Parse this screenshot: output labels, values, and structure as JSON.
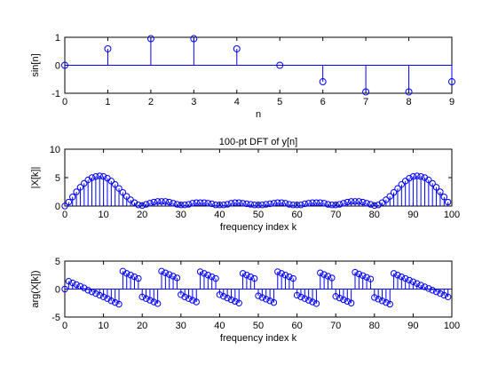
{
  "colors": {
    "stem": "#0000ff",
    "axis": "#000000",
    "background": "#ffffff"
  },
  "chart_data": [
    {
      "type": "stem",
      "title": "",
      "xlabel": "n",
      "ylabel": "sin[n]",
      "xlim": [
        0,
        9
      ],
      "ylim": [
        -1,
        1
      ],
      "xticks": [
        0,
        1,
        2,
        3,
        4,
        5,
        6,
        7,
        8,
        9
      ],
      "yticks": [
        -1,
        0,
        1
      ],
      "grid": false,
      "series": [
        {
          "x": [
            0,
            1,
            2,
            3,
            4,
            5,
            6,
            7,
            8,
            9
          ],
          "y": [
            0,
            0.588,
            0.951,
            0.951,
            0.588,
            0,
            -0.588,
            -0.951,
            -0.951,
            -0.588
          ]
        }
      ]
    },
    {
      "type": "stem",
      "title": "100-pt DFT of y[n]",
      "xlabel": "frequency index k",
      "ylabel": "|X[k]|",
      "xlim": [
        0,
        100
      ],
      "ylim": [
        0,
        10
      ],
      "xticks": [
        0,
        10,
        20,
        30,
        40,
        50,
        60,
        70,
        80,
        90,
        100
      ],
      "yticks": [
        0,
        5,
        10
      ],
      "grid": false,
      "series": [
        {
          "x": [
            0,
            1,
            2,
            3,
            4,
            5,
            6,
            7,
            8,
            9,
            10,
            11,
            12,
            13,
            14,
            15,
            16,
            17,
            18,
            19,
            20,
            21,
            22,
            23,
            24,
            25,
            26,
            27,
            28,
            29,
            30,
            31,
            32,
            33,
            34,
            35,
            36,
            37,
            38,
            39,
            40,
            41,
            42,
            43,
            44,
            45,
            46,
            47,
            48,
            49,
            50,
            51,
            52,
            53,
            54,
            55,
            56,
            57,
            58,
            59,
            60,
            61,
            62,
            63,
            64,
            65,
            66,
            67,
            68,
            69,
            70,
            71,
            72,
            73,
            74,
            75,
            76,
            77,
            78,
            79,
            80,
            81,
            82,
            83,
            84,
            85,
            86,
            87,
            88,
            89,
            90,
            91,
            92,
            93,
            94,
            95,
            96,
            97,
            98,
            99
          ],
          "y": [
            0,
            0.7,
            1.6,
            2.5,
            3.3,
            4.0,
            4.6,
            5.0,
            5.2,
            5.3,
            5.2,
            4.9,
            4.4,
            3.8,
            3.1,
            2.4,
            1.7,
            1.1,
            0.6,
            0.2,
            0.1,
            0.3,
            0.5,
            0.7,
            0.8,
            0.8,
            0.8,
            0.7,
            0.5,
            0.3,
            0.2,
            0.2,
            0.3,
            0.5,
            0.6,
            0.6,
            0.6,
            0.5,
            0.4,
            0.2,
            0.2,
            0.2,
            0.3,
            0.5,
            0.6,
            0.6,
            0.5,
            0.4,
            0.3,
            0.2,
            0.2,
            0.2,
            0.3,
            0.4,
            0.5,
            0.6,
            0.6,
            0.5,
            0.3,
            0.2,
            0.2,
            0.2,
            0.4,
            0.5,
            0.6,
            0.6,
            0.6,
            0.5,
            0.3,
            0.2,
            0.2,
            0.3,
            0.5,
            0.7,
            0.8,
            0.8,
            0.8,
            0.7,
            0.5,
            0.3,
            0.1,
            0.2,
            0.6,
            1.1,
            1.7,
            2.4,
            3.1,
            3.8,
            4.4,
            4.9,
            5.2,
            5.3,
            5.2,
            5.0,
            4.6,
            4.0,
            3.3,
            2.5,
            1.6,
            0.7
          ]
        }
      ]
    },
    {
      "type": "stem",
      "title": "",
      "xlabel": "frequency index k",
      "ylabel": "arg(X[k])",
      "xlim": [
        0,
        100
      ],
      "ylim": [
        -5,
        5
      ],
      "xticks": [
        0,
        10,
        20,
        30,
        40,
        50,
        60,
        70,
        80,
        90,
        100
      ],
      "yticks": [
        -5,
        0,
        5
      ],
      "grid": false,
      "series": [
        {
          "x": [
            0,
            1,
            2,
            3,
            4,
            5,
            6,
            7,
            8,
            9,
            10,
            11,
            12,
            13,
            14,
            15,
            16,
            17,
            18,
            19,
            20,
            21,
            22,
            23,
            24,
            25,
            26,
            27,
            28,
            29,
            30,
            31,
            32,
            33,
            34,
            35,
            36,
            37,
            38,
            39,
            40,
            41,
            42,
            43,
            44,
            45,
            46,
            47,
            48,
            49,
            50,
            51,
            52,
            53,
            54,
            55,
            56,
            57,
            58,
            59,
            60,
            61,
            62,
            63,
            64,
            65,
            66,
            67,
            68,
            69,
            70,
            71,
            72,
            73,
            74,
            75,
            76,
            77,
            78,
            79,
            80,
            81,
            82,
            83,
            84,
            85,
            86,
            87,
            88,
            89,
            90,
            91,
            92,
            93,
            94,
            95,
            96,
            97,
            98,
            99
          ],
          "y": [
            0,
            1.4,
            1.1,
            0.8,
            0.5,
            0.2,
            -0.2,
            -0.5,
            -0.8,
            -1.1,
            -1.4,
            -1.7,
            -2.1,
            -2.4,
            -2.7,
            3.2,
            2.8,
            2.5,
            2.2,
            1.9,
            -1.4,
            -1.7,
            -2.0,
            -2.3,
            -2.6,
            3.2,
            2.9,
            2.6,
            2.3,
            2.0,
            -1.0,
            -1.4,
            -1.7,
            -2.0,
            -2.3,
            3.1,
            2.8,
            2.5,
            2.2,
            1.9,
            -1.0,
            -1.3,
            -1.6,
            -1.9,
            -2.2,
            -2.5,
            2.8,
            2.5,
            2.2,
            1.9,
            -1.2,
            -1.5,
            -1.8,
            -2.1,
            -2.4,
            3.1,
            2.8,
            2.5,
            2.2,
            1.9,
            -1.1,
            -1.4,
            -1.7,
            -2.0,
            -2.3,
            -2.6,
            2.9,
            2.6,
            2.3,
            2.0,
            -1.3,
            -1.6,
            -1.9,
            -2.2,
            -2.5,
            3.0,
            2.7,
            2.4,
            2.1,
            1.8,
            -1.5,
            -1.8,
            -2.1,
            -2.4,
            -2.7,
            2.8,
            2.5,
            2.2,
            1.9,
            1.6,
            1.3,
            1.0,
            0.7,
            0.4,
            0.1,
            -0.2,
            -0.5,
            -0.8,
            -1.1,
            -1.4
          ]
        }
      ]
    }
  ]
}
